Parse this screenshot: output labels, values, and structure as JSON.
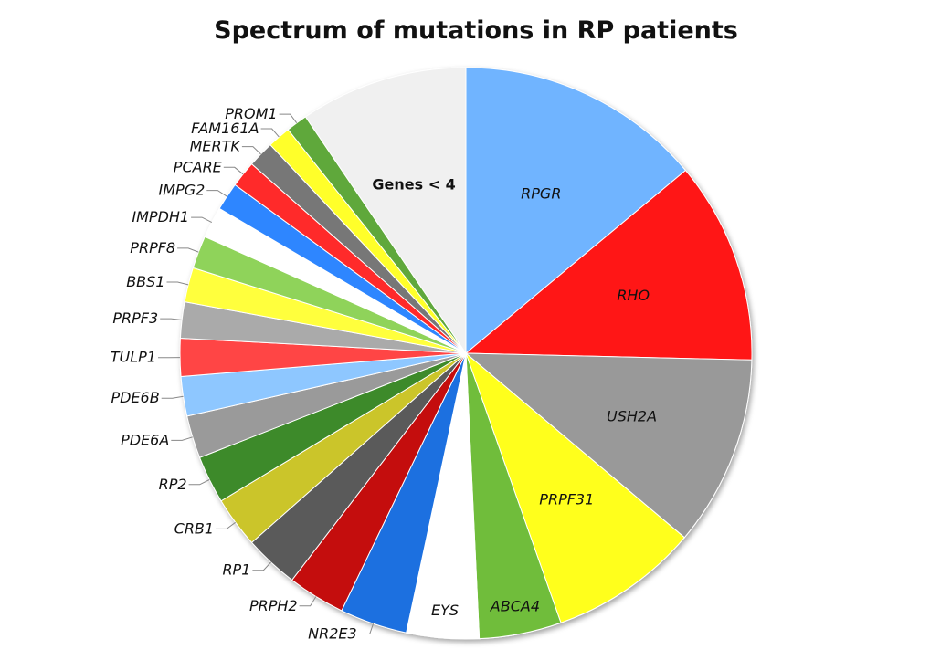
{
  "chart_data": {
    "type": "pie",
    "title": "Spectrum of mutations in RP patients",
    "start_angle_deg": 0,
    "direction": "clockwise",
    "slices": [
      {
        "label": "RPGR",
        "value": 15.0,
        "color": "#6fb4ff",
        "label_style": "inside"
      },
      {
        "label": "RHO",
        "value": 12.3,
        "color": "#ff1212",
        "label_style": "inside"
      },
      {
        "label": "USH2A",
        "value": 11.6,
        "color": "#999999",
        "label_style": "inside"
      },
      {
        "label": "PRPF31",
        "value": 9.1,
        "color": "#ffff1e",
        "label_style": "inside"
      },
      {
        "label": "ABCA4",
        "value": 5.0,
        "color": "#6fbd3a",
        "label_style": "inside"
      },
      {
        "label": "EYS",
        "value": 4.4,
        "color": "#ffffff",
        "label_style": "inside"
      },
      {
        "label": "NR2E3",
        "value": 4.1,
        "color": "#1a6fe0",
        "label_style": "outside"
      },
      {
        "label": "PRPH2",
        "value": 3.5,
        "color": "#c41010",
        "label_style": "outside"
      },
      {
        "label": "RP1",
        "value": 3.3,
        "color": "#5a5a5a",
        "label_style": "outside"
      },
      {
        "label": "CRB1",
        "value": 3.1,
        "color": "#cbc52a",
        "label_style": "outside"
      },
      {
        "label": "RP2",
        "value": 2.9,
        "color": "#3d8a2b",
        "label_style": "outside"
      },
      {
        "label": "PDE6A",
        "value": 2.6,
        "color": "#9a9a9a",
        "label_style": "outside"
      },
      {
        "label": "PDE6B",
        "value": 2.4,
        "color": "#8ec7ff",
        "label_style": "outside"
      },
      {
        "label": "TULP1",
        "value": 2.3,
        "color": "#ff4545",
        "label_style": "outside"
      },
      {
        "label": "PRPF3",
        "value": 2.2,
        "color": "#aaaaaa",
        "label_style": "outside"
      },
      {
        "label": "BBS1",
        "value": 2.1,
        "color": "#ffff3c",
        "label_style": "outside"
      },
      {
        "label": "PRPF8",
        "value": 2.0,
        "color": "#8fd35a",
        "label_style": "outside"
      },
      {
        "label": "IMPDH1",
        "value": 1.9,
        "color": "#ffffff",
        "label_style": "outside"
      },
      {
        "label": "IMPG2",
        "value": 1.7,
        "color": "#2f86ff",
        "label_style": "outside"
      },
      {
        "label": "PCARE",
        "value": 1.6,
        "color": "#ff2a2a",
        "label_style": "outside"
      },
      {
        "label": "MERTK",
        "value": 1.6,
        "color": "#777777",
        "label_style": "outside"
      },
      {
        "label": "FAM161A",
        "value": 1.4,
        "color": "#ffff2a",
        "label_style": "outside"
      },
      {
        "label": "PROM1",
        "value": 1.3,
        "color": "#5fa83a",
        "label_style": "outside"
      },
      {
        "label": "Genes < 4",
        "value": 10.2,
        "color": "#f0f0f0",
        "label_style": "inside-plain"
      }
    ]
  }
}
